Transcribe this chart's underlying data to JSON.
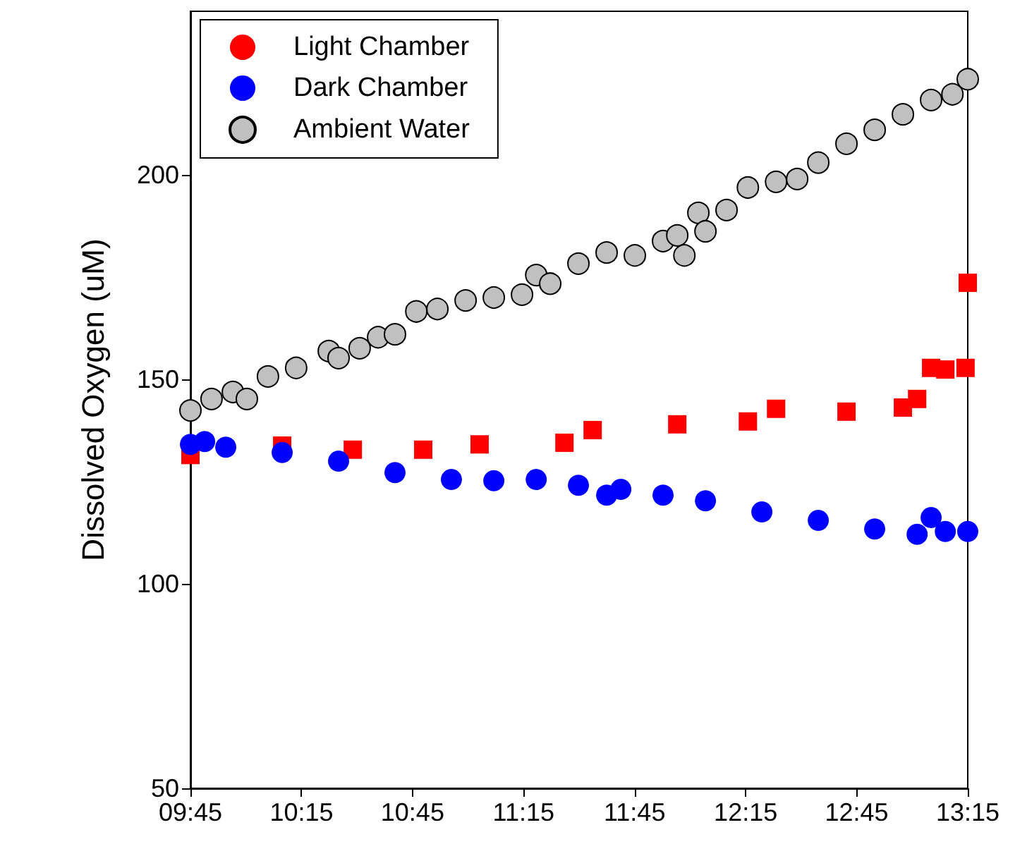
{
  "chart_data": {
    "type": "scatter",
    "ylabel": "Dissolved Oxygen (uM)",
    "xlim": [
      9.75,
      13.25
    ],
    "xticks": [
      {
        "value": 9.75,
        "label": "09:45"
      },
      {
        "value": 10.25,
        "label": "10:15"
      },
      {
        "value": 10.75,
        "label": "10:45"
      },
      {
        "value": 11.25,
        "label": "11:15"
      },
      {
        "value": 11.75,
        "label": "11:45"
      },
      {
        "value": 12.25,
        "label": "12:15"
      },
      {
        "value": 12.75,
        "label": "12:45"
      },
      {
        "value": 13.25,
        "label": "13:15"
      }
    ],
    "ylim": [
      50,
      240
    ],
    "yticks": [
      50,
      100,
      150,
      200
    ],
    "grid": false,
    "legend": "top left",
    "series": [
      {
        "name": "Light Chamber",
        "color": "#ff0000",
        "marker": "square",
        "x": [
          9.75,
          10.163,
          10.481,
          10.798,
          11.052,
          11.434,
          11.561,
          11.942,
          12.26,
          12.387,
          12.704,
          12.958,
          13.022,
          13.085,
          13.149,
          13.24,
          13.25
        ],
        "values": [
          131.5,
          133.8,
          132.8,
          132.8,
          134.1,
          134.5,
          137.6,
          139,
          139.7,
          142.8,
          142.1,
          143.1,
          145.2,
          152.8,
          152.4,
          152.8,
          173.6
        ]
      },
      {
        "name": "Dark Chamber",
        "color": "#0000ff",
        "marker": "circle",
        "x": [
          9.75,
          9.814,
          9.909,
          10.163,
          10.417,
          10.671,
          10.925,
          11.116,
          11.307,
          11.497,
          11.624,
          11.688,
          11.878,
          12.069,
          12.323,
          12.577,
          12.831,
          13.022,
          13.085,
          13.149,
          13.25
        ],
        "values": [
          134.1,
          134.8,
          133.4,
          132.1,
          130,
          127.2,
          125.5,
          125.2,
          125.5,
          124.1,
          121.7,
          123.1,
          121.7,
          120.3,
          117.6,
          115.5,
          113.4,
          112.1,
          116.2,
          112.8,
          112.8
        ]
      },
      {
        "name": "Ambient Water",
        "color": "#c0c0c0",
        "marker": "circle",
        "x": [
          9.75,
          9.845,
          9.941,
          10.004,
          10.099,
          10.226,
          10.373,
          10.417,
          10.512,
          10.595,
          10.671,
          10.767,
          10.862,
          10.989,
          11.116,
          11.243,
          11.307,
          11.37,
          11.497,
          11.624,
          11.751,
          11.878,
          11.942,
          11.974,
          12.037,
          12.069,
          12.164,
          12.26,
          12.387,
          12.482,
          12.577,
          12.704,
          12.831,
          12.958,
          13.085,
          13.181,
          13.25
        ],
        "values": [
          142.4,
          145.2,
          146.9,
          145.2,
          150.7,
          152.8,
          156.9,
          155.2,
          157.6,
          160.3,
          161,
          166.6,
          167.2,
          169.3,
          170,
          170.7,
          175.5,
          173.4,
          178.3,
          181,
          180.3,
          183.8,
          185.2,
          180.3,
          190.7,
          186.2,
          191.4,
          196.9,
          198.3,
          199,
          203,
          207.6,
          211,
          214.8,
          218.3,
          219.7,
          223.4
        ]
      }
    ]
  }
}
